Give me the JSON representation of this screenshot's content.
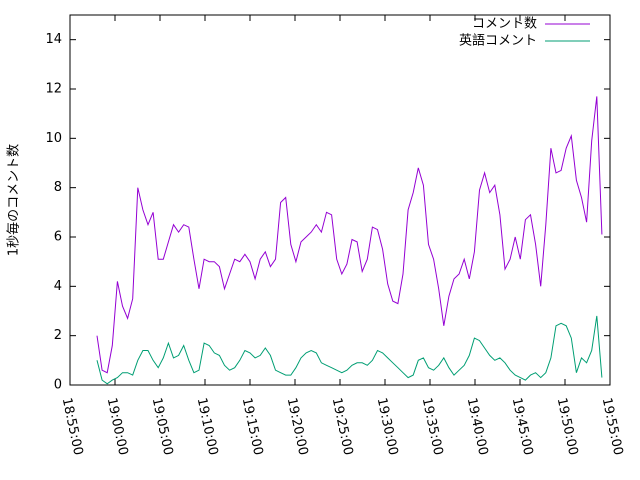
{
  "chart_data": {
    "type": "line",
    "y_label": "1秒毎のコメント数",
    "x": [
      "18:58:00",
      "18:58:34",
      "18:59:08",
      "18:59:42",
      "19:00:16",
      "19:00:50",
      "19:01:24",
      "19:01:58",
      "19:02:32",
      "19:03:06",
      "19:03:40",
      "19:04:14",
      "19:04:48",
      "19:05:22",
      "19:05:56",
      "19:06:30",
      "19:07:04",
      "19:07:38",
      "19:08:12",
      "19:08:46",
      "19:09:20",
      "19:09:54",
      "19:10:28",
      "19:11:02",
      "19:11:36",
      "19:12:10",
      "19:12:44",
      "19:13:18",
      "19:13:52",
      "19:14:26",
      "19:15:00",
      "19:15:34",
      "19:16:08",
      "19:16:42",
      "19:17:16",
      "19:17:50",
      "19:18:24",
      "19:18:58",
      "19:19:32",
      "19:20:06",
      "19:20:40",
      "19:21:14",
      "19:21:48",
      "19:22:22",
      "19:22:56",
      "19:23:30",
      "19:24:04",
      "19:24:38",
      "19:25:12",
      "19:25:46",
      "19:26:20",
      "19:26:54",
      "19:27:28",
      "19:28:02",
      "19:28:36",
      "19:29:10",
      "19:29:44",
      "19:30:18",
      "19:30:52",
      "19:31:26",
      "19:32:00",
      "19:32:34",
      "19:33:08",
      "19:33:42",
      "19:34:16",
      "19:34:50",
      "19:35:24",
      "19:35:58",
      "19:36:32",
      "19:37:06",
      "19:37:40",
      "19:38:14",
      "19:38:48",
      "19:39:22",
      "19:39:56",
      "19:40:30",
      "19:41:04",
      "19:41:38",
      "19:42:12",
      "19:42:46",
      "19:43:20",
      "19:43:54",
      "19:44:28",
      "19:45:02",
      "19:45:36",
      "19:46:10",
      "19:46:44",
      "19:47:18",
      "19:47:52",
      "19:48:26",
      "19:49:00",
      "19:49:34",
      "19:50:08",
      "19:50:42",
      "19:51:16",
      "19:51:50",
      "19:52:24",
      "19:52:58",
      "19:53:32",
      "19:54:06"
    ],
    "series": [
      {
        "name": "コメント数",
        "color": "#9400d3",
        "values": [
          2.0,
          0.6,
          0.5,
          1.6,
          4.2,
          3.2,
          2.7,
          3.5,
          8.0,
          7.1,
          6.5,
          7.0,
          5.1,
          5.1,
          5.8,
          6.5,
          6.2,
          6.5,
          6.4,
          5.1,
          3.9,
          5.1,
          5.0,
          5.0,
          4.8,
          3.9,
          4.5,
          5.1,
          5.0,
          5.3,
          5.0,
          4.3,
          5.1,
          5.4,
          4.8,
          5.1,
          7.4,
          7.6,
          5.7,
          5.0,
          5.8,
          6.0,
          6.2,
          6.5,
          6.2,
          7.0,
          6.9,
          5.1,
          4.5,
          4.9,
          5.9,
          5.8,
          4.6,
          5.1,
          6.4,
          6.3,
          5.5,
          4.1,
          3.4,
          3.3,
          4.5,
          7.1,
          7.8,
          8.8,
          8.1,
          5.7,
          5.1,
          3.9,
          2.4,
          3.6,
          4.3,
          4.5,
          5.1,
          4.3,
          5.4,
          7.9,
          8.6,
          7.8,
          8.1,
          6.9,
          4.7,
          5.1,
          6.0,
          5.1,
          6.7,
          6.9,
          5.7,
          4.0,
          6.5,
          9.6,
          8.6,
          8.7,
          9.6,
          10.1,
          8.3,
          7.6,
          6.6,
          9.9,
          11.7,
          6.1
        ]
      },
      {
        "name": "英語コメント",
        "color": "#009e73",
        "values": [
          1.0,
          0.2,
          0.05,
          0.2,
          0.3,
          0.5,
          0.5,
          0.4,
          1.0,
          1.4,
          1.4,
          1.0,
          0.7,
          1.1,
          1.7,
          1.1,
          1.2,
          1.6,
          1.0,
          0.5,
          0.6,
          1.7,
          1.6,
          1.3,
          1.2,
          0.8,
          0.6,
          0.7,
          1.0,
          1.4,
          1.3,
          1.1,
          1.2,
          1.5,
          1.2,
          0.6,
          0.5,
          0.4,
          0.4,
          0.7,
          1.1,
          1.3,
          1.4,
          1.3,
          0.9,
          0.8,
          0.7,
          0.6,
          0.5,
          0.6,
          0.8,
          0.9,
          0.9,
          0.8,
          1.0,
          1.4,
          1.3,
          1.1,
          0.9,
          0.7,
          0.5,
          0.3,
          0.4,
          1.0,
          1.1,
          0.7,
          0.6,
          0.8,
          1.1,
          0.7,
          0.4,
          0.6,
          0.8,
          1.2,
          1.9,
          1.8,
          1.5,
          1.2,
          1.0,
          1.1,
          0.9,
          0.6,
          0.4,
          0.3,
          0.2,
          0.4,
          0.5,
          0.3,
          0.5,
          1.1,
          2.4,
          2.5,
          2.4,
          1.9,
          0.5,
          1.1,
          0.9,
          1.4,
          2.8,
          0.3
        ]
      }
    ],
    "xlim": [
      "18:55:00",
      "19:55:00"
    ],
    "xticks": [
      "18:55:00",
      "19:00:00",
      "19:05:00",
      "19:10:00",
      "19:15:00",
      "19:20:00",
      "19:25:00",
      "19:30:00",
      "19:35:00",
      "19:40:00",
      "19:45:00",
      "19:50:00",
      "19:55:00"
    ],
    "ylim": [
      0,
      15
    ],
    "yticks": [
      0,
      2,
      4,
      6,
      8,
      10,
      12,
      14
    ],
    "legend": "top-right"
  }
}
